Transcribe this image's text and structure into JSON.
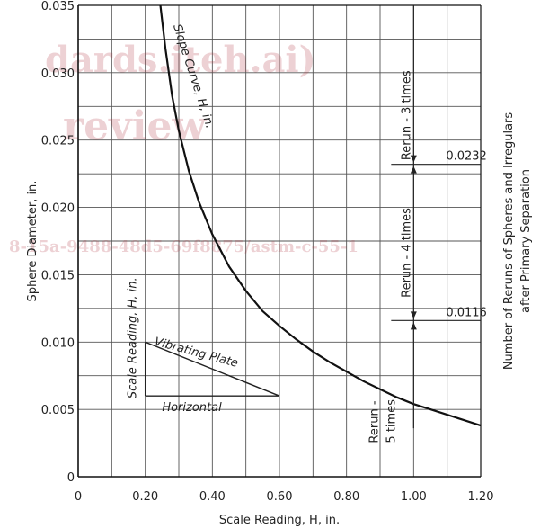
{
  "chart_data": {
    "type": "line",
    "xlabel": "Scale Reading, H, in.",
    "ylabel": "Sphere Diameter, in.",
    "right_label_line1": "Number of Reruns of Spheres and Irregulars",
    "right_label_line2": "after Primary Separation",
    "xlim": [
      0,
      1.2
    ],
    "ylim": [
      0,
      0.035
    ],
    "grid": true,
    "x_ticks": [
      0,
      0.2,
      0.4,
      0.6,
      0.8,
      1.0,
      1.2
    ],
    "x_tick_labels": [
      "0",
      "0.20",
      "0.40",
      "0.60",
      "0.80",
      "1.00",
      "1.20"
    ],
    "y_ticks": [
      0,
      0.005,
      0.01,
      0.015,
      0.02,
      0.025,
      0.03,
      0.035
    ],
    "y_tick_labels": [
      "0",
      "0.005",
      "0.010",
      "0.015",
      "0.020",
      "0.025",
      "0.030",
      "0.035"
    ],
    "series": [
      {
        "name": "Slope Curve, H, in.",
        "x": [
          0.245,
          0.26,
          0.28,
          0.3,
          0.33,
          0.36,
          0.4,
          0.45,
          0.5,
          0.55,
          0.6,
          0.65,
          0.7,
          0.75,
          0.8,
          0.85,
          0.9,
          0.95,
          1.0,
          1.05,
          1.1,
          1.15,
          1.2
        ],
        "y": [
          0.035,
          0.0318,
          0.0283,
          0.0257,
          0.0227,
          0.0204,
          0.018,
          0.0156,
          0.0138,
          0.0123,
          0.0112,
          0.0102,
          0.0093,
          0.0085,
          0.0078,
          0.0071,
          0.0065,
          0.0059,
          0.0054,
          0.005,
          0.0046,
          0.0042,
          0.0038
        ]
      }
    ],
    "inset": {
      "scale_label": "Scale Reading, H, in.",
      "plate_label": "Vibrating Plate",
      "horizontal_label": "Horizontal"
    },
    "zones": [
      {
        "label": "Rerun - 3 times"
      },
      {
        "label": "Rerun - 4 times"
      },
      {
        "label_line1": "Rerun -",
        "label_line2": "5 times"
      }
    ],
    "thresholds": [
      {
        "value": 0.0232,
        "label": "0.0232"
      },
      {
        "value": 0.0116,
        "label": "0.0116"
      }
    ]
  },
  "watermark": {
    "line1": "dards.iteh.ai)",
    "line2": "review",
    "line3": "8-15a-9488-48d5-69f8875/astm-c-55-1"
  }
}
